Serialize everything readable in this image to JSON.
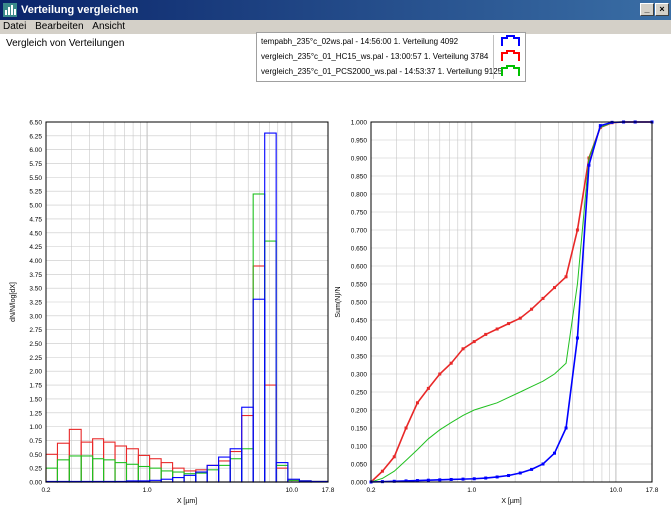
{
  "window": {
    "title": "Verteilung vergleichen",
    "min_glyph": "_",
    "close_glyph": "×"
  },
  "menu": [
    "Datei",
    "Bearbeiten",
    "Ansicht"
  ],
  "heading": "Vergleich von Verteilungen",
  "legend": {
    "items": [
      {
        "label": "tempabh_235°c_02ws.pal - 14:56:00 1. Verteilung 4092",
        "color": "#0000ff"
      },
      {
        "label": "vergleich_235°c_01_HC15_ws.pal - 13:00:57 1. Verteilung 3784",
        "color": "#ff0000"
      },
      {
        "label": "vergleich_235°c_01_PCS2000_ws.pal - 14:53:37 1. Verteilung 9125",
        "color": "#00c000"
      }
    ]
  },
  "colors": {
    "blue": "#0000ff",
    "red": "#e82828",
    "green": "#20c020",
    "grid": "#c8c8c8"
  },
  "chart_data": [
    {
      "type": "bar",
      "ylabel": "dN/N/log[dX]",
      "xlabel": "X [µm]",
      "xscale": "log",
      "xlim": [
        0.2,
        17.8
      ],
      "ylim": [
        0,
        6.5
      ],
      "yticks": [
        "0.00",
        "0.25",
        "0.50",
        "0.75",
        "1.00",
        "1.25",
        "1.50",
        "1.75",
        "2.00",
        "2.25",
        "2.50",
        "2.75",
        "3.00",
        "3.25",
        "3.50",
        "3.75",
        "4.00",
        "4.25",
        "4.50",
        "4.75",
        "5.00",
        "5.25",
        "5.50",
        "5.75",
        "6.00",
        "6.25",
        "6.50"
      ],
      "xticks": [
        "0.2",
        "1.0",
        "10.0",
        "17.8"
      ],
      "bin_edges": [
        0.2,
        0.24,
        0.29,
        0.35,
        0.42,
        0.5,
        0.6,
        0.72,
        0.87,
        1.04,
        1.25,
        1.5,
        1.8,
        2.17,
        2.6,
        3.12,
        3.75,
        4.51,
        5.41,
        6.5,
        7.8,
        9.4,
        11.3,
        13.6,
        17.8
      ],
      "series": [
        {
          "color_key": "red",
          "values": [
            0.5,
            0.7,
            0.95,
            0.72,
            0.78,
            0.72,
            0.65,
            0.6,
            0.48,
            0.42,
            0.35,
            0.25,
            0.2,
            0.22,
            0.3,
            0.38,
            0.55,
            1.2,
            3.9,
            1.75,
            0.25,
            0.03,
            0.02,
            0.01
          ]
        },
        {
          "color_key": "green",
          "values": [
            0.25,
            0.4,
            0.47,
            0.47,
            0.42,
            0.4,
            0.35,
            0.32,
            0.28,
            0.25,
            0.2,
            0.18,
            0.15,
            0.16,
            0.22,
            0.3,
            0.42,
            0.6,
            5.2,
            4.35,
            0.3,
            0.03,
            0.02,
            0.01
          ]
        },
        {
          "color_key": "blue",
          "values": [
            0.01,
            0.01,
            0.01,
            0.01,
            0.01,
            0.01,
            0.01,
            0.02,
            0.02,
            0.03,
            0.05,
            0.08,
            0.12,
            0.18,
            0.3,
            0.45,
            0.6,
            1.35,
            3.3,
            6.3,
            0.35,
            0.05,
            0.02,
            0.01
          ]
        }
      ]
    },
    {
      "type": "line",
      "ylabel": "Sum(N)/N",
      "xlabel": "X [µm]",
      "xscale": "log",
      "xlim": [
        0.2,
        17.8
      ],
      "ylim": [
        0,
        1
      ],
      "yticks": [
        "0.000",
        "0.050",
        "0.100",
        "0.150",
        "0.200",
        "0.250",
        "0.300",
        "0.350",
        "0.400",
        "0.450",
        "0.500",
        "0.550",
        "0.600",
        "0.650",
        "0.700",
        "0.750",
        "0.800",
        "0.850",
        "0.900",
        "0.950",
        "1.000"
      ],
      "xticks": [
        "0.2",
        "1.0",
        "10.0",
        "17.8"
      ],
      "series": [
        {
          "color_key": "red",
          "x": [
            0.2,
            0.24,
            0.29,
            0.35,
            0.42,
            0.5,
            0.6,
            0.72,
            0.87,
            1.04,
            1.25,
            1.5,
            1.8,
            2.17,
            2.6,
            3.12,
            3.75,
            4.51,
            5.41,
            6.5,
            7.8,
            9.4,
            11.3,
            13.6,
            17.8
          ],
          "y": [
            0,
            0.03,
            0.07,
            0.15,
            0.22,
            0.26,
            0.3,
            0.33,
            0.37,
            0.39,
            0.41,
            0.425,
            0.44,
            0.455,
            0.48,
            0.51,
            0.54,
            0.57,
            0.7,
            0.9,
            0.985,
            0.998,
            1,
            1,
            1
          ]
        },
        {
          "color_key": "green",
          "x": [
            0.2,
            0.24,
            0.29,
            0.35,
            0.42,
            0.5,
            0.6,
            0.72,
            0.87,
            1.04,
            1.25,
            1.5,
            1.8,
            2.17,
            2.6,
            3.12,
            3.75,
            4.51,
            5.41,
            6.5,
            7.8,
            9.4,
            11.3,
            13.6,
            17.8
          ],
          "y": [
            0,
            0.01,
            0.03,
            0.06,
            0.09,
            0.12,
            0.145,
            0.165,
            0.185,
            0.2,
            0.21,
            0.22,
            0.235,
            0.25,
            0.265,
            0.28,
            0.3,
            0.33,
            0.55,
            0.9,
            0.985,
            0.998,
            1,
            1,
            1
          ]
        },
        {
          "color_key": "blue",
          "x": [
            0.2,
            0.24,
            0.29,
            0.35,
            0.42,
            0.5,
            0.6,
            0.72,
            0.87,
            1.04,
            1.25,
            1.5,
            1.8,
            2.17,
            2.6,
            3.12,
            3.75,
            4.51,
            5.41,
            6.5,
            7.8,
            9.4,
            11.3,
            13.6,
            17.8
          ],
          "y": [
            0,
            0.001,
            0.002,
            0.003,
            0.004,
            0.005,
            0.006,
            0.007,
            0.008,
            0.009,
            0.011,
            0.014,
            0.018,
            0.025,
            0.035,
            0.05,
            0.08,
            0.15,
            0.4,
            0.88,
            0.99,
            0.999,
            1,
            1,
            1
          ]
        }
      ]
    }
  ]
}
